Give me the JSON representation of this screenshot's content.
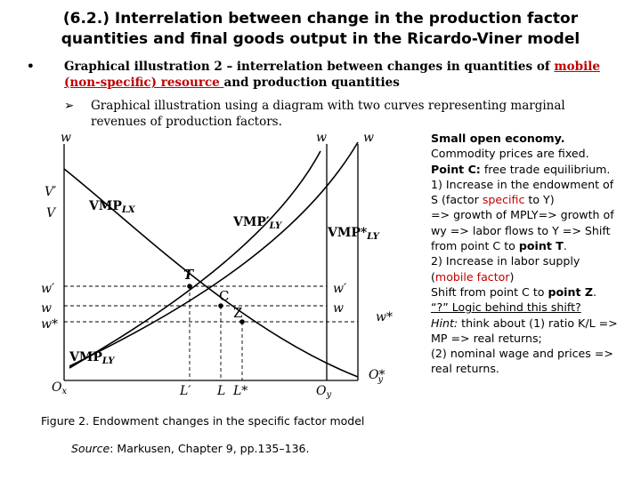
{
  "title": {
    "line1": "(6.2.) Interrelation between change in the production factor",
    "line2": "quantities and final goods output in the Ricardo-Viner model"
  },
  "bullet": {
    "symbol": "•",
    "text_before": "Graphical illustration 2 – interrelation between changes in quantities of ",
    "link_text": "mobile (non-specific) resource ",
    "text_after": "and production quantities",
    "link_color": "#c00000"
  },
  "sub_bullet": {
    "symbol": "➢",
    "text": "Graphical illustration using a diagram with two curves representing marginal revenues of production factors."
  },
  "figure": {
    "axis_labels": {
      "w_left": "w",
      "w_mid": "w",
      "w_right": "w",
      "Vprime": "V′",
      "V": "V",
      "wprime_left": "w′",
      "w_left_level": "w",
      "wstar_left": "w*",
      "wprime_right": "w′",
      "w_right_level": "w",
      "wstar_right": "w*",
      "Ox": "O",
      "Ox_sub": "x",
      "Lprime": "L′",
      "L": "L",
      "Lstar": "L*",
      "Oy": "O",
      "Oy_sub": "y",
      "Oystar": "O*",
      "Oystar_sub": "y"
    },
    "curve_labels": {
      "vmplx": "VMP",
      "vmplx_sub": "LX",
      "vmply_prime": "VMP′",
      "vmply_prime_sub": "LY",
      "vmply_star": "VMP*",
      "vmply_star_sub": "LY",
      "vmply": "VMP",
      "vmply_sub": "LY"
    },
    "points": {
      "T": "T",
      "C": "C",
      "Z": "Z"
    },
    "caption": "Figure 2. Endowment changes in the specific factor model",
    "source_label": "Source",
    "source_text": ": Markusen, Chapter 9, pp.135–136."
  },
  "notes": {
    "heading": "Small open economy.",
    "l1": "Commodity prices are fixed.",
    "pointc_bold": "Point C:",
    "pointc_text": " free trade equilibrium.",
    "item1_a": "1) Increase in the endowment of S (factor ",
    "item1_red": "specific",
    "item1_b": " to Y)",
    "item1_c": "=> growth of MPLY=> growth of wy => labor flows to Y => Shift from point C to ",
    "item1_bold": "point T",
    "item1_end": ".",
    "item2_a": "2) Increase in labor supply",
    "item2_paren_open": "(",
    "item2_red": "mobile factor",
    "item2_paren_close": ")",
    "item2_b": "Shift from point C to ",
    "item2_bold": "point Z",
    "item2_end": ".",
    "logic": "“?” Logic behind this shift?",
    "hint_label": "Hint:",
    "hint_text": " think about (1) ratio K/L => MP => real returns;",
    "hint_text2": "(2) nominal wage and prices => real returns.",
    "accent_color": "#c00000"
  }
}
